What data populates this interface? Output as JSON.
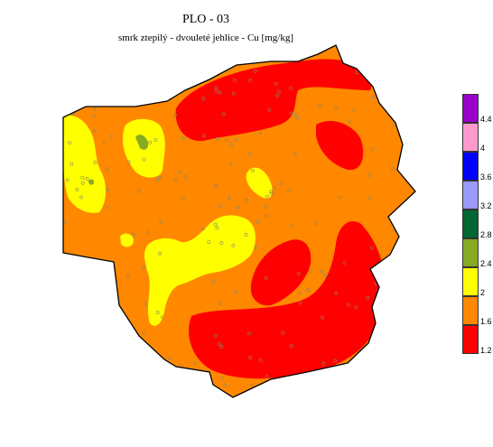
{
  "title": "PLO - 03",
  "subtitle": "smrk ztepilý - dvouleté jehlice - Cu [mg/kg]",
  "legend": {
    "classes": [
      {
        "color": "#9900cc",
        "lower": 4.4
      },
      {
        "color": "#ff99cc",
        "lower": 4
      },
      {
        "color": "#0000ff",
        "lower": 3.6
      },
      {
        "color": "#9999ff",
        "lower": 3.2
      },
      {
        "color": "#006633",
        "lower": 2.8
      },
      {
        "color": "#88aa22",
        "lower": 2.4
      },
      {
        "color": "#ffff00",
        "lower": 2
      },
      {
        "color": "#ff8800",
        "lower": 1.6
      },
      {
        "color": "#ff0000",
        "lower": 1.2
      }
    ]
  },
  "colors": {
    "outline": "#000000",
    "sample_point": "#888866"
  }
}
